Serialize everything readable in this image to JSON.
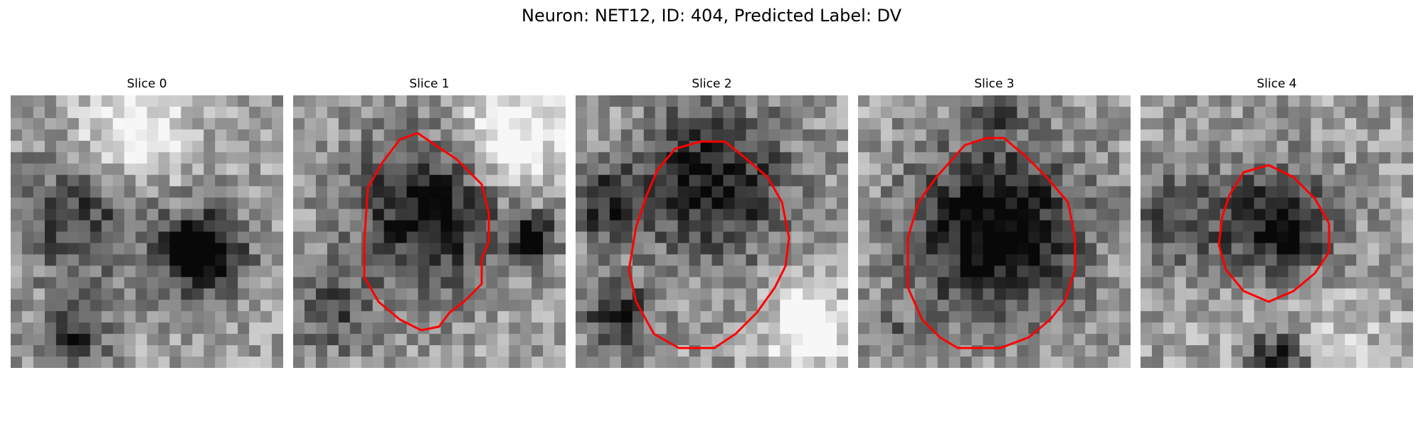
{
  "figure": {
    "title": "Neuron: NET12, ID: 404, Predicted Label: DV",
    "contour_color": "#ff0000"
  },
  "panels": [
    {
      "title": "Slice 0",
      "has_contour": false,
      "seed": 11,
      "blobs": [
        [
          0.7,
          0.58,
          0.16,
          0.75
        ],
        [
          0.25,
          0.45,
          0.22,
          0.4
        ],
        [
          0.22,
          0.9,
          0.12,
          0.5
        ],
        [
          0.45,
          0.12,
          0.2,
          -0.4
        ]
      ]
    },
    {
      "title": "Slice 1",
      "has_contour": true,
      "seed": 23,
      "blobs": [
        [
          0.5,
          0.42,
          0.28,
          0.55
        ],
        [
          0.88,
          0.52,
          0.08,
          0.6
        ],
        [
          0.15,
          0.8,
          0.15,
          0.3
        ],
        [
          0.8,
          0.15,
          0.2,
          -0.5
        ]
      ]
    },
    {
      "title": "Slice 2",
      "has_contour": true,
      "seed": 37,
      "blobs": [
        [
          0.5,
          0.32,
          0.28,
          0.55
        ],
        [
          0.15,
          0.8,
          0.12,
          0.5
        ],
        [
          0.85,
          0.85,
          0.15,
          -0.5
        ],
        [
          0.1,
          0.4,
          0.14,
          0.4
        ]
      ]
    },
    {
      "title": "Slice 3",
      "has_contour": true,
      "seed": 51,
      "blobs": [
        [
          0.5,
          0.5,
          0.3,
          0.7
        ],
        [
          0.5,
          0.06,
          0.1,
          0.3
        ],
        [
          0.1,
          0.85,
          0.1,
          0.2
        ]
      ]
    },
    {
      "title": "Slice 4",
      "has_contour": true,
      "seed": 67,
      "blobs": [
        [
          0.5,
          0.48,
          0.22,
          0.6
        ],
        [
          0.1,
          0.45,
          0.16,
          0.35
        ],
        [
          0.5,
          0.98,
          0.12,
          0.7
        ],
        [
          0.6,
          0.9,
          0.3,
          -0.2
        ]
      ]
    }
  ]
}
